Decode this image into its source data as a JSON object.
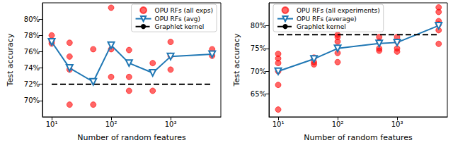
{
  "chart_data": [
    {
      "type": "line",
      "xlabel": "Number of random features",
      "ylabel": "Test accuracy",
      "log": "x",
      "grid": false,
      "legend": "upper right",
      "xlim": [
        7,
        7000
      ],
      "xticks": [
        {
          "value": 10,
          "label": "10¹"
        },
        {
          "value": 100,
          "label": "10²"
        },
        {
          "value": 1000,
          "label": "10³"
        }
      ],
      "ylim": [
        68,
        82
      ],
      "yticks": [
        {
          "value": 70,
          "label": "70%"
        },
        {
          "value": 72,
          "label": "72%"
        },
        {
          "value": 74,
          "label": "74%"
        },
        {
          "value": 76,
          "label": "76%"
        },
        {
          "value": 78,
          "label": "78%"
        },
        {
          "value": 80,
          "label": "80%"
        }
      ],
      "series": [
        {
          "name": "OPU RFs (all exps)",
          "type": "scatter",
          "color": "#ff0000",
          "marker": "circle",
          "x": [
            10,
            10,
            10,
            20,
            20,
            20,
            20,
            50,
            50,
            100,
            100,
            100,
            200,
            200,
            200,
            500,
            500,
            1000,
            1000,
            1000,
            5000,
            5000
          ],
          "values": [
            78.0,
            77.3,
            77.0,
            77.1,
            75.4,
            73.8,
            69.5,
            76.3,
            69.5,
            81.4,
            76.3,
            72.9,
            76.2,
            72.9,
            71.2,
            74.6,
            71.2,
            77.2,
            73.8,
            75.5,
            76.3,
            75.5
          ]
        },
        {
          "name": "OPU RFs (avg)",
          "type": "line",
          "color": "#1f77b4",
          "marker": "triangle-down",
          "x": [
            10,
            20,
            50,
            100,
            200,
            500,
            1000,
            5000
          ],
          "values": [
            77.2,
            74.0,
            72.3,
            76.8,
            74.6,
            73.4,
            75.4,
            75.7
          ]
        },
        {
          "name": "Graphlet kernel",
          "type": "line",
          "color": "#000000",
          "line_style": "dashed",
          "x": [
            10,
            5000
          ],
          "values": [
            72.0,
            72.0
          ]
        }
      ]
    },
    {
      "type": "line",
      "xlabel": "Number of random features",
      "ylabel": "Test accuracy",
      "log": "x",
      "grid": false,
      "legend": "upper left",
      "xlim": [
        7,
        7000
      ],
      "xticks": [
        {
          "value": 10,
          "label": "10¹"
        },
        {
          "value": 100,
          "label": "10²"
        },
        {
          "value": 1000,
          "label": "10³"
        }
      ],
      "ylim": [
        60,
        85
      ],
      "yticks": [
        {
          "value": 65,
          "label": "65%"
        },
        {
          "value": 70,
          "label": "70%"
        },
        {
          "value": 75,
          "label": "75%"
        },
        {
          "value": 80,
          "label": "80%"
        }
      ],
      "series": [
        {
          "name": "OPU RFs (all experiments)",
          "type": "scatter",
          "color": "#ff0000",
          "marker": "circle",
          "x": [
            10,
            10,
            10,
            10,
            10,
            10,
            40,
            40,
            40,
            100,
            100,
            100,
            100,
            100,
            500,
            500,
            500,
            500,
            1000,
            1000,
            1000,
            1000,
            5000,
            5000,
            5000,
            5000,
            5000,
            5000
          ],
          "values": [
            73.8,
            72.8,
            71.8,
            70.0,
            67.0,
            61.6,
            73.0,
            72.0,
            71.5,
            78.0,
            77.5,
            76.5,
            74.0,
            72.0,
            77.5,
            76.5,
            75.0,
            74.5,
            77.5,
            76.5,
            75.0,
            74.3,
            84.0,
            83.0,
            81.0,
            80.3,
            79.0,
            76.0
          ]
        },
        {
          "name": "OPU RFs (average)",
          "type": "line",
          "color": "#1f77b4",
          "marker": "triangle-down",
          "x": [
            10,
            40,
            100,
            500,
            1000,
            5000
          ],
          "values": [
            70.0,
            72.7,
            75.0,
            76.1,
            76.3,
            80.0
          ]
        },
        {
          "name": "Graphlet kernel",
          "type": "line",
          "color": "#000000",
          "line_style": "dashed",
          "x": [
            10,
            5000
          ],
          "values": [
            78.0,
            78.0
          ]
        }
      ]
    }
  ]
}
